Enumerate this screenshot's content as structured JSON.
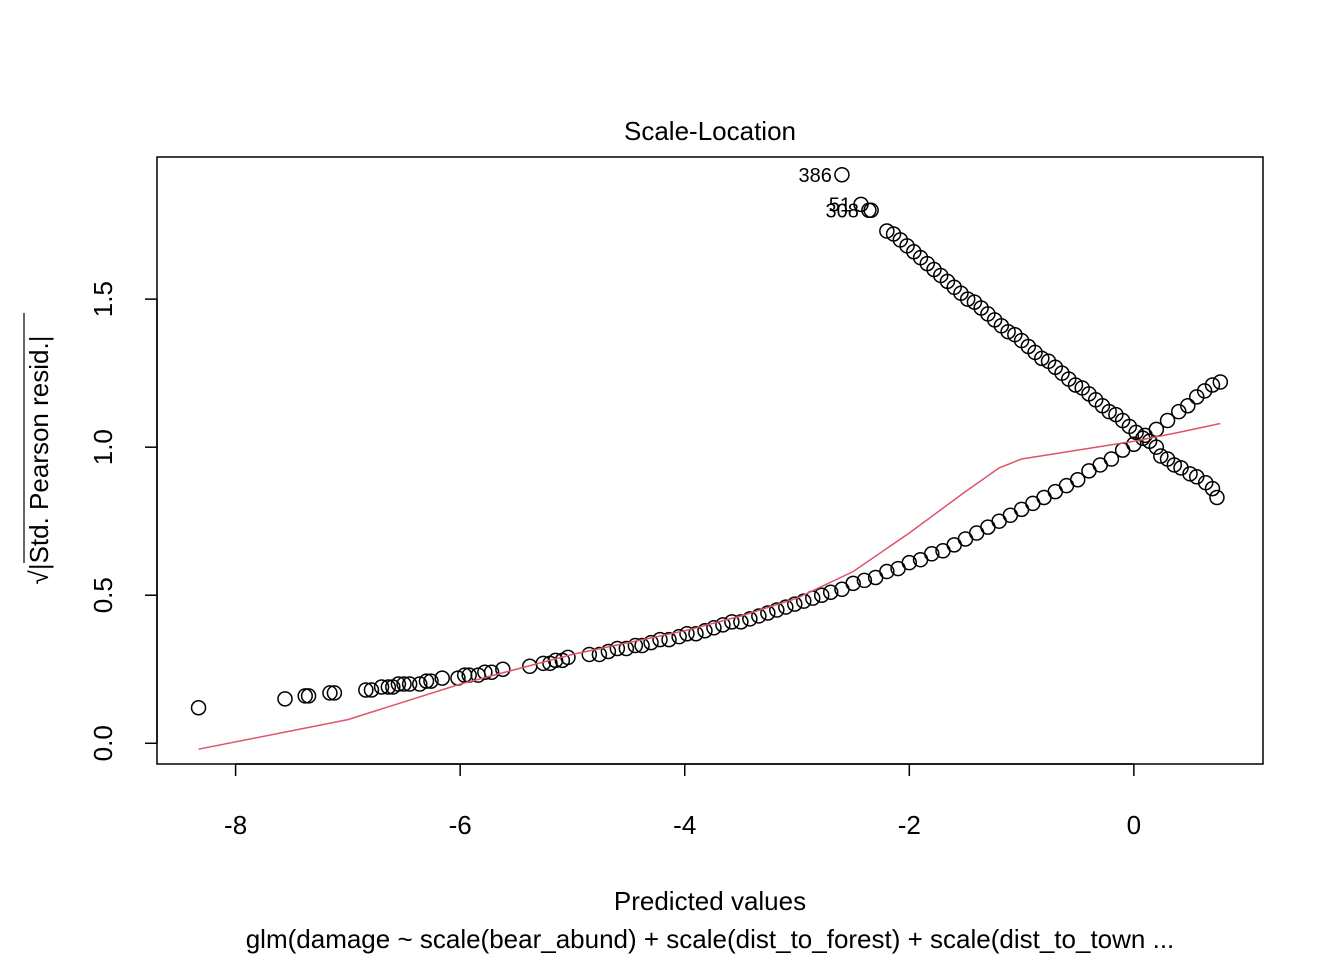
{
  "colors": {
    "points": "#000000",
    "smoother": "#DF536B",
    "frame": "#000000"
  },
  "chart_data": {
    "type": "scatter",
    "title": "Scale-Location",
    "xlabel": "Predicted values",
    "subtitle": "glm(damage ~ scale(bear_abund) + scale(dist_to_forest) + scale(dist_to_town ...",
    "ylabel_prefix": "√",
    "ylabel": "|Std. Pearson resid.|",
    "xlim": [
      -8.7,
      1.15
    ],
    "ylim": [
      -0.07,
      1.98
    ],
    "x_ticks": [
      -8,
      -6,
      -4,
      -2,
      0
    ],
    "x_tick_labels": [
      "-8",
      "-6",
      "-4",
      "-2",
      "0"
    ],
    "y_ticks": [
      0.0,
      0.5,
      1.0,
      1.5
    ],
    "y_tick_labels": [
      "0.0",
      "0.5",
      "1.0",
      "1.5"
    ],
    "grid": false,
    "series": [
      {
        "marker": "open-circle",
        "points": [
          [
            -8.33,
            0.12
          ],
          [
            -7.56,
            0.15
          ],
          [
            -7.38,
            0.16
          ],
          [
            -7.35,
            0.16
          ],
          [
            -7.16,
            0.17
          ],
          [
            -7.12,
            0.17
          ],
          [
            -6.84,
            0.18
          ],
          [
            -6.79,
            0.18
          ],
          [
            -6.7,
            0.19
          ],
          [
            -6.64,
            0.19
          ],
          [
            -6.6,
            0.19
          ],
          [
            -6.55,
            0.2
          ],
          [
            -6.5,
            0.2
          ],
          [
            -6.45,
            0.2
          ],
          [
            -6.36,
            0.2
          ],
          [
            -6.3,
            0.21
          ],
          [
            -6.26,
            0.21
          ],
          [
            -6.16,
            0.22
          ],
          [
            -6.02,
            0.22
          ],
          [
            -5.96,
            0.23
          ],
          [
            -5.92,
            0.23
          ],
          [
            -5.84,
            0.23
          ],
          [
            -5.78,
            0.24
          ],
          [
            -5.72,
            0.24
          ],
          [
            -5.62,
            0.25
          ],
          [
            -5.38,
            0.26
          ],
          [
            -5.26,
            0.27
          ],
          [
            -5.2,
            0.27
          ],
          [
            -5.15,
            0.28
          ],
          [
            -5.09,
            0.28
          ],
          [
            -5.04,
            0.29
          ],
          [
            -4.85,
            0.3
          ],
          [
            -4.76,
            0.3
          ],
          [
            -4.68,
            0.31
          ],
          [
            -4.6,
            0.32
          ],
          [
            -4.52,
            0.32
          ],
          [
            -4.44,
            0.33
          ],
          [
            -4.38,
            0.33
          ],
          [
            -4.3,
            0.34
          ],
          [
            -4.22,
            0.35
          ],
          [
            -4.14,
            0.35
          ],
          [
            -4.05,
            0.36
          ],
          [
            -3.98,
            0.37
          ],
          [
            -3.9,
            0.37
          ],
          [
            -3.82,
            0.38
          ],
          [
            -3.74,
            0.39
          ],
          [
            -3.66,
            0.4
          ],
          [
            -3.58,
            0.41
          ],
          [
            -3.5,
            0.41
          ],
          [
            -3.42,
            0.42
          ],
          [
            -3.34,
            0.43
          ],
          [
            -3.26,
            0.44
          ],
          [
            -3.18,
            0.45
          ],
          [
            -3.1,
            0.46
          ],
          [
            -3.02,
            0.47
          ],
          [
            -2.94,
            0.48
          ],
          [
            -2.86,
            0.49
          ],
          [
            -2.78,
            0.5
          ],
          [
            -2.7,
            0.51
          ],
          [
            -2.6,
            0.52
          ],
          [
            -2.5,
            0.54
          ],
          [
            -2.4,
            0.55
          ],
          [
            -2.3,
            0.56
          ],
          [
            -2.2,
            0.58
          ],
          [
            -2.1,
            0.59
          ],
          [
            -2.0,
            0.61
          ],
          [
            -1.9,
            0.62
          ],
          [
            -1.8,
            0.64
          ],
          [
            -1.7,
            0.65
          ],
          [
            -1.6,
            0.67
          ],
          [
            -1.5,
            0.69
          ],
          [
            -1.4,
            0.71
          ],
          [
            -1.3,
            0.73
          ],
          [
            -1.2,
            0.75
          ],
          [
            -1.1,
            0.77
          ],
          [
            -1.0,
            0.79
          ],
          [
            -0.9,
            0.81
          ],
          [
            -0.8,
            0.83
          ],
          [
            -0.7,
            0.85
          ],
          [
            -0.6,
            0.87
          ],
          [
            -0.5,
            0.89
          ],
          [
            -0.4,
            0.92
          ],
          [
            -0.3,
            0.94
          ],
          [
            -0.2,
            0.96
          ],
          [
            -0.1,
            0.99
          ],
          [
            0.0,
            1.01
          ],
          [
            0.1,
            1.04
          ],
          [
            0.2,
            1.06
          ],
          [
            0.3,
            1.09
          ],
          [
            0.4,
            1.12
          ],
          [
            0.48,
            1.14
          ],
          [
            0.56,
            1.17
          ],
          [
            0.63,
            1.19
          ],
          [
            0.7,
            1.21
          ],
          [
            0.77,
            1.22
          ],
          [
            -2.6,
            1.92
          ],
          [
            -2.43,
            1.82
          ],
          [
            -2.36,
            1.8
          ],
          [
            -2.34,
            1.8
          ],
          [
            -2.2,
            1.73
          ],
          [
            -2.14,
            1.72
          ],
          [
            -2.08,
            1.7
          ],
          [
            -2.02,
            1.68
          ],
          [
            -1.96,
            1.66
          ],
          [
            -1.9,
            1.64
          ],
          [
            -1.84,
            1.62
          ],
          [
            -1.78,
            1.6
          ],
          [
            -1.72,
            1.58
          ],
          [
            -1.66,
            1.56
          ],
          [
            -1.6,
            1.54
          ],
          [
            -1.54,
            1.52
          ],
          [
            -1.48,
            1.5
          ],
          [
            -1.42,
            1.49
          ],
          [
            -1.36,
            1.47
          ],
          [
            -1.3,
            1.45
          ],
          [
            -1.24,
            1.43
          ],
          [
            -1.18,
            1.41
          ],
          [
            -1.12,
            1.39
          ],
          [
            -1.06,
            1.38
          ],
          [
            -1.0,
            1.36
          ],
          [
            -0.94,
            1.34
          ],
          [
            -0.88,
            1.32
          ],
          [
            -0.82,
            1.3
          ],
          [
            -0.76,
            1.29
          ],
          [
            -0.7,
            1.27
          ],
          [
            -0.64,
            1.25
          ],
          [
            -0.58,
            1.23
          ],
          [
            -0.52,
            1.21
          ],
          [
            -0.46,
            1.2
          ],
          [
            -0.4,
            1.18
          ],
          [
            -0.34,
            1.16
          ],
          [
            -0.28,
            1.14
          ],
          [
            -0.22,
            1.12
          ],
          [
            -0.16,
            1.11
          ],
          [
            -0.1,
            1.09
          ],
          [
            -0.04,
            1.07
          ],
          [
            0.02,
            1.05
          ],
          [
            0.08,
            1.03
          ],
          [
            0.14,
            1.02
          ],
          [
            0.2,
            1.0
          ],
          [
            0.24,
            0.97
          ],
          [
            0.3,
            0.96
          ],
          [
            0.36,
            0.94
          ],
          [
            0.42,
            0.93
          ],
          [
            0.5,
            0.91
          ],
          [
            0.56,
            0.9
          ],
          [
            0.64,
            0.88
          ],
          [
            0.7,
            0.86
          ],
          [
            0.74,
            0.83
          ]
        ]
      },
      {
        "marker": "line",
        "points": [
          [
            -8.33,
            -0.02
          ],
          [
            -7.0,
            0.08
          ],
          [
            -6.0,
            0.2
          ],
          [
            -5.0,
            0.3
          ],
          [
            -4.0,
            0.38
          ],
          [
            -3.5,
            0.43
          ],
          [
            -3.0,
            0.49
          ],
          [
            -2.5,
            0.58
          ],
          [
            -2.0,
            0.71
          ],
          [
            -1.5,
            0.85
          ],
          [
            -1.2,
            0.93
          ],
          [
            -1.0,
            0.96
          ],
          [
            -0.5,
            0.99
          ],
          [
            0.0,
            1.02
          ],
          [
            0.4,
            1.05
          ],
          [
            0.77,
            1.08
          ]
        ]
      }
    ],
    "point_labels": [
      {
        "text": "386",
        "x": -2.6,
        "y": 1.92
      },
      {
        "text": "51",
        "x": -2.43,
        "y": 1.82
      },
      {
        "text": "308",
        "x": -2.36,
        "y": 1.8
      }
    ]
  }
}
